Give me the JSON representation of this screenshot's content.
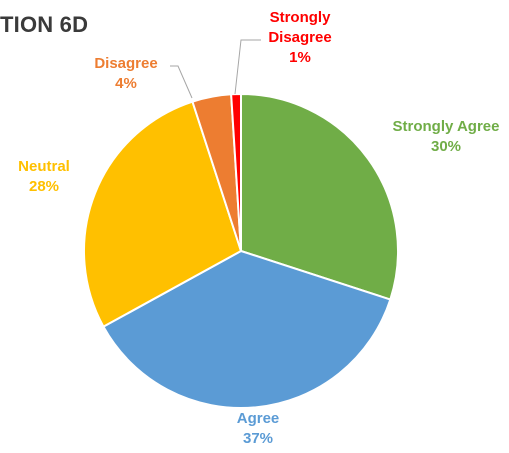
{
  "chart_data": {
    "type": "pie",
    "title": "TION 6D",
    "categories": [
      "Strongly Agree",
      "Agree",
      "Neutral",
      "Disagree",
      "Strongly Disagree"
    ],
    "values": [
      30,
      37,
      28,
      4,
      1
    ],
    "value_labels": [
      "30%",
      "37%",
      "28%",
      "4%",
      "1%"
    ],
    "colors": [
      "#70AD47",
      "#5B9BD5",
      "#FFC000",
      "#ED7D31",
      "#FF0000"
    ],
    "legend": "none"
  }
}
